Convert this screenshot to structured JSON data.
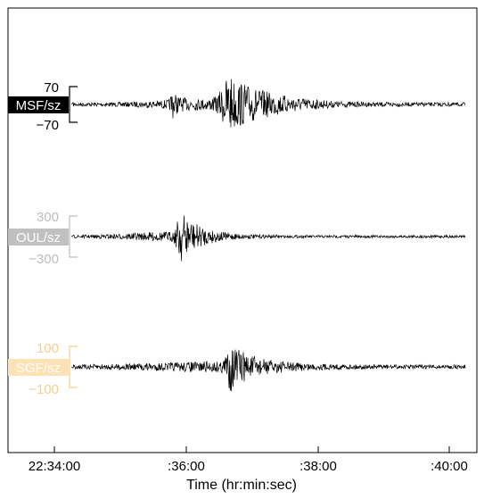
{
  "chart_data": {
    "type": "line",
    "xlabel": "Time (hr:min:sec)",
    "x_ticks": [
      "22:34:00",
      ":36:00",
      ":38:00",
      ":40:00"
    ],
    "traces": [
      {
        "label": "MSF/sz",
        "ytick_top": "70",
        "ytick_bottom": "−70",
        "label_bg": "#000000",
        "label_fg": "#ffffff",
        "tick_color": "#000000"
      },
      {
        "label": "OUL/sz",
        "ytick_top": "300",
        "ytick_bottom": "−300",
        "label_bg": "#c0c0c0",
        "label_fg": "#ffffff",
        "tick_color": "#bdbdbd"
      },
      {
        "label": "SGF/sz",
        "ytick_top": "100",
        "ytick_bottom": "−100",
        "label_bg": "#fde2b6",
        "label_fg": "#ffffff",
        "tick_color": "#f5cf94"
      }
    ],
    "grid": false
  }
}
